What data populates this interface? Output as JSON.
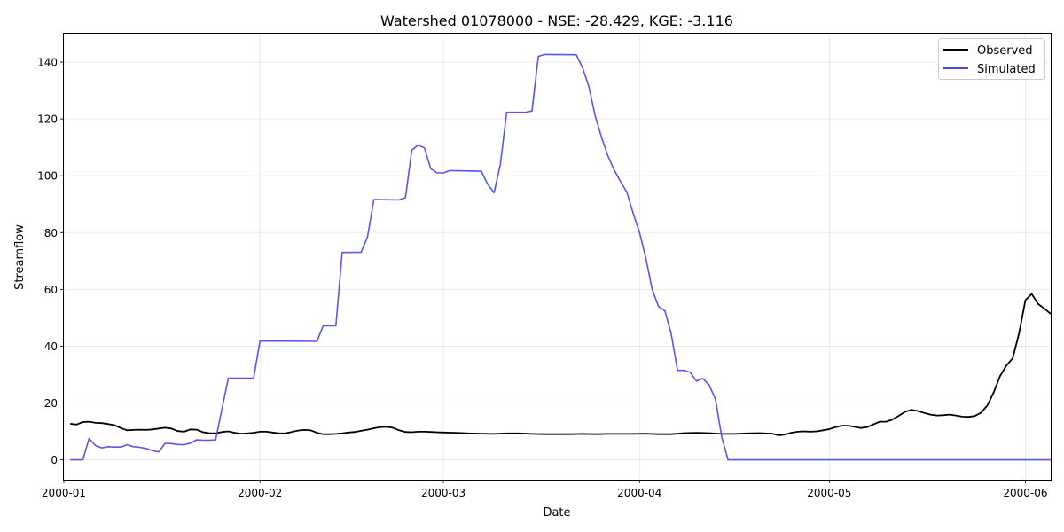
{
  "chart_data": {
    "type": "line",
    "title": "Watershed 01078000 - NSE: -28.429, KGE: -3.116",
    "xlabel": "Date",
    "ylabel": "Streamflow",
    "xlim": [
      "2000-01-01",
      "2000-06-05"
    ],
    "ylim": [
      -7,
      150
    ],
    "x_ticks": [
      "2000-01-01",
      "2000-02-01",
      "2000-03-01",
      "2000-04-01",
      "2000-05-01",
      "2000-06-01"
    ],
    "x_tick_labels": [
      "2000-01",
      "2000-02",
      "2000-03",
      "2000-04",
      "2000-05",
      "2000-06"
    ],
    "y_ticks": [
      0,
      20,
      40,
      60,
      80,
      100,
      120,
      140
    ],
    "grid": true,
    "legend_position": "top-right",
    "series": [
      {
        "name": "Observed",
        "color": "#000000",
        "points": [
          [
            "2000-01-02",
            12.7
          ],
          [
            "2000-01-03",
            12.4
          ],
          [
            "2000-01-04",
            13.3
          ],
          [
            "2000-01-05",
            13.4
          ],
          [
            "2000-01-06",
            13.0
          ],
          [
            "2000-01-07",
            12.9
          ],
          [
            "2000-01-08",
            12.6
          ],
          [
            "2000-01-09",
            12.2
          ],
          [
            "2000-01-10",
            11.2
          ],
          [
            "2000-01-11",
            10.4
          ],
          [
            "2000-01-12",
            10.5
          ],
          [
            "2000-01-13",
            10.6
          ],
          [
            "2000-01-14",
            10.5
          ],
          [
            "2000-01-15",
            10.7
          ],
          [
            "2000-01-16",
            11.0
          ],
          [
            "2000-01-17",
            11.3
          ],
          [
            "2000-01-18",
            11.0
          ],
          [
            "2000-01-19",
            10.1
          ],
          [
            "2000-01-20",
            9.9
          ],
          [
            "2000-01-21",
            10.7
          ],
          [
            "2000-01-22",
            10.6
          ],
          [
            "2000-01-23",
            9.7
          ],
          [
            "2000-01-24",
            9.4
          ],
          [
            "2000-01-25",
            9.3
          ],
          [
            "2000-01-26",
            9.8
          ],
          [
            "2000-01-27",
            10.0
          ],
          [
            "2000-01-28",
            9.5
          ],
          [
            "2000-01-29",
            9.2
          ],
          [
            "2000-01-30",
            9.3
          ],
          [
            "2000-01-31",
            9.5
          ],
          [
            "2000-02-01",
            9.9
          ],
          [
            "2000-02-02",
            9.9
          ],
          [
            "2000-02-03",
            9.6
          ],
          [
            "2000-02-04",
            9.3
          ],
          [
            "2000-02-05",
            9.3
          ],
          [
            "2000-02-06",
            9.8
          ],
          [
            "2000-02-07",
            10.3
          ],
          [
            "2000-02-08",
            10.5
          ],
          [
            "2000-02-09",
            10.4
          ],
          [
            "2000-02-10",
            9.5
          ],
          [
            "2000-02-11",
            9.0
          ],
          [
            "2000-02-12",
            9.0
          ],
          [
            "2000-02-13",
            9.1
          ],
          [
            "2000-02-14",
            9.3
          ],
          [
            "2000-02-15",
            9.6
          ],
          [
            "2000-02-16",
            9.8
          ],
          [
            "2000-02-17",
            10.2
          ],
          [
            "2000-02-18",
            10.6
          ],
          [
            "2000-02-19",
            11.1
          ],
          [
            "2000-02-20",
            11.5
          ],
          [
            "2000-02-21",
            11.6
          ],
          [
            "2000-02-22",
            11.3
          ],
          [
            "2000-02-23",
            10.4
          ],
          [
            "2000-02-24",
            9.8
          ],
          [
            "2000-02-25",
            9.7
          ],
          [
            "2000-02-26",
            9.9
          ],
          [
            "2000-02-27",
            9.9
          ],
          [
            "2000-02-28",
            9.8
          ],
          [
            "2000-02-29",
            9.7
          ],
          [
            "2000-03-01",
            9.6
          ],
          [
            "2000-03-03",
            9.5
          ],
          [
            "2000-03-05",
            9.3
          ],
          [
            "2000-03-07",
            9.2
          ],
          [
            "2000-03-09",
            9.1
          ],
          [
            "2000-03-11",
            9.3
          ],
          [
            "2000-03-13",
            9.3
          ],
          [
            "2000-03-15",
            9.1
          ],
          [
            "2000-03-17",
            9.0
          ],
          [
            "2000-03-19",
            9.0
          ],
          [
            "2000-03-21",
            9.0
          ],
          [
            "2000-03-23",
            9.1
          ],
          [
            "2000-03-25",
            9.0
          ],
          [
            "2000-03-27",
            9.1
          ],
          [
            "2000-03-29",
            9.1
          ],
          [
            "2000-03-31",
            9.1
          ],
          [
            "2000-04-02",
            9.2
          ],
          [
            "2000-04-04",
            9.0
          ],
          [
            "2000-04-06",
            9.0
          ],
          [
            "2000-04-08",
            9.4
          ],
          [
            "2000-04-10",
            9.5
          ],
          [
            "2000-04-12",
            9.4
          ],
          [
            "2000-04-14",
            9.1
          ],
          [
            "2000-04-16",
            9.1
          ],
          [
            "2000-04-18",
            9.3
          ],
          [
            "2000-04-20",
            9.4
          ],
          [
            "2000-04-22",
            9.2
          ],
          [
            "2000-04-23",
            8.6
          ],
          [
            "2000-04-24",
            8.9
          ],
          [
            "2000-04-25",
            9.5
          ],
          [
            "2000-04-26",
            9.9
          ],
          [
            "2000-04-27",
            10.0
          ],
          [
            "2000-04-28",
            9.9
          ],
          [
            "2000-04-29",
            10.0
          ],
          [
            "2000-04-30",
            10.4
          ],
          [
            "2000-05-01",
            10.8
          ],
          [
            "2000-05-02",
            11.5
          ],
          [
            "2000-05-03",
            12.0
          ],
          [
            "2000-05-04",
            12.0
          ],
          [
            "2000-05-05",
            11.6
          ],
          [
            "2000-05-06",
            11.2
          ],
          [
            "2000-05-07",
            11.5
          ],
          [
            "2000-05-08",
            12.5
          ],
          [
            "2000-05-09",
            13.4
          ],
          [
            "2000-05-10",
            13.4
          ],
          [
            "2000-05-11",
            14.2
          ],
          [
            "2000-05-12",
            15.5
          ],
          [
            "2000-05-13",
            16.9
          ],
          [
            "2000-05-14",
            17.6
          ],
          [
            "2000-05-15",
            17.2
          ],
          [
            "2000-05-16",
            16.5
          ],
          [
            "2000-05-17",
            15.9
          ],
          [
            "2000-05-18",
            15.6
          ],
          [
            "2000-05-19",
            15.7
          ],
          [
            "2000-05-20",
            15.9
          ],
          [
            "2000-05-21",
            15.6
          ],
          [
            "2000-05-22",
            15.2
          ],
          [
            "2000-05-23",
            15.1
          ],
          [
            "2000-05-24",
            15.4
          ],
          [
            "2000-05-25",
            16.6
          ],
          [
            "2000-05-26",
            19.2
          ],
          [
            "2000-05-27",
            23.8
          ],
          [
            "2000-05-28",
            29.5
          ],
          [
            "2000-05-29",
            33.2
          ],
          [
            "2000-05-30",
            35.8
          ],
          [
            "2000-05-31",
            44.5
          ],
          [
            "2000-06-01",
            56.2
          ],
          [
            "2000-06-02",
            58.4
          ],
          [
            "2000-06-03",
            54.9
          ],
          [
            "2000-06-04",
            53.2
          ],
          [
            "2000-06-05",
            51.4
          ]
        ]
      },
      {
        "name": "Simulated",
        "color": "#4444ee",
        "points": [
          [
            "2000-01-02",
            0.0
          ],
          [
            "2000-01-04",
            0.0
          ],
          [
            "2000-01-05",
            7.5
          ],
          [
            "2000-01-06",
            5.0
          ],
          [
            "2000-01-07",
            4.2
          ],
          [
            "2000-01-08",
            4.6
          ],
          [
            "2000-01-09",
            4.5
          ],
          [
            "2000-01-10",
            4.5
          ],
          [
            "2000-01-11",
            5.3
          ],
          [
            "2000-01-12",
            4.6
          ],
          [
            "2000-01-13",
            4.4
          ],
          [
            "2000-01-14",
            4.0
          ],
          [
            "2000-01-15",
            3.2
          ],
          [
            "2000-01-16",
            2.8
          ],
          [
            "2000-01-17",
            5.8
          ],
          [
            "2000-01-18",
            5.7
          ],
          [
            "2000-01-19",
            5.4
          ],
          [
            "2000-01-20",
            5.3
          ],
          [
            "2000-01-21",
            5.9
          ],
          [
            "2000-01-22",
            7.0
          ],
          [
            "2000-01-23",
            6.9
          ],
          [
            "2000-01-24",
            6.9
          ],
          [
            "2000-01-25",
            7.0
          ],
          [
            "2000-01-26",
            18.0
          ],
          [
            "2000-01-27",
            28.7
          ],
          [
            "2000-01-31",
            28.7
          ],
          [
            "2000-02-01",
            41.8
          ],
          [
            "2000-02-05",
            41.8
          ],
          [
            "2000-02-10",
            41.7
          ],
          [
            "2000-02-11",
            47.2
          ],
          [
            "2000-02-13",
            47.2
          ],
          [
            "2000-02-14",
            73.0
          ],
          [
            "2000-02-17",
            73.1
          ],
          [
            "2000-02-18",
            78.5
          ],
          [
            "2000-02-19",
            91.6
          ],
          [
            "2000-02-23",
            91.5
          ],
          [
            "2000-02-24",
            92.3
          ],
          [
            "2000-02-25",
            109.0
          ],
          [
            "2000-02-26",
            110.8
          ],
          [
            "2000-02-27",
            109.8
          ],
          [
            "2000-02-28",
            102.5
          ],
          [
            "2000-02-29",
            101.0
          ],
          [
            "2000-03-01",
            101.0
          ],
          [
            "2000-03-02",
            101.8
          ],
          [
            "2000-03-07",
            101.6
          ],
          [
            "2000-03-08",
            97.0
          ],
          [
            "2000-03-09",
            94.0
          ],
          [
            "2000-03-10",
            104.0
          ],
          [
            "2000-03-11",
            122.3
          ],
          [
            "2000-03-14",
            122.3
          ],
          [
            "2000-03-15",
            122.8
          ],
          [
            "2000-03-16",
            142.0
          ],
          [
            "2000-03-17",
            142.7
          ],
          [
            "2000-03-22",
            142.6
          ],
          [
            "2000-03-23",
            138.0
          ],
          [
            "2000-03-24",
            131.3
          ],
          [
            "2000-03-25",
            121.0
          ],
          [
            "2000-03-26",
            113.5
          ],
          [
            "2000-03-27",
            107.0
          ],
          [
            "2000-03-28",
            102.0
          ],
          [
            "2000-03-29",
            98.0
          ],
          [
            "2000-03-30",
            94.2
          ],
          [
            "2000-03-31",
            86.8
          ],
          [
            "2000-04-01",
            80.0
          ],
          [
            "2000-04-02",
            71.0
          ],
          [
            "2000-04-03",
            60.0
          ],
          [
            "2000-04-04",
            54.0
          ],
          [
            "2000-04-05",
            52.5
          ],
          [
            "2000-04-06",
            44.5
          ],
          [
            "2000-04-07",
            31.5
          ],
          [
            "2000-04-08",
            31.5
          ],
          [
            "2000-04-09",
            30.8
          ],
          [
            "2000-04-10",
            27.7
          ],
          [
            "2000-04-11",
            28.6
          ],
          [
            "2000-04-12",
            26.4
          ],
          [
            "2000-04-13",
            21.3
          ],
          [
            "2000-04-14",
            8.0
          ],
          [
            "2000-04-15",
            0.0
          ],
          [
            "2000-06-05",
            0.0
          ]
        ]
      }
    ]
  }
}
